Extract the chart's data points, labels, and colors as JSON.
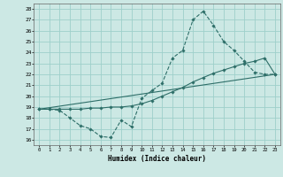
{
  "xlabel": "Humidex (Indice chaleur)",
  "bg_color": "#cce8e4",
  "grid_color": "#9ecfca",
  "line_color": "#2d6e68",
  "xlim": [
    -0.5,
    23.5
  ],
  "ylim": [
    15.5,
    28.5
  ],
  "yticks": [
    16,
    17,
    18,
    19,
    20,
    21,
    22,
    23,
    24,
    25,
    26,
    27,
    28
  ],
  "xticks": [
    0,
    1,
    2,
    3,
    4,
    5,
    6,
    7,
    8,
    9,
    10,
    11,
    12,
    13,
    14,
    15,
    16,
    17,
    18,
    19,
    20,
    21,
    22,
    23
  ],
  "line1_x": [
    0,
    1,
    2,
    3,
    4,
    5,
    6,
    7,
    8,
    9,
    10,
    11,
    12,
    13,
    14,
    15,
    16,
    17,
    18,
    19,
    20,
    21,
    22,
    23
  ],
  "line1_y": [
    18.8,
    18.8,
    18.7,
    18.0,
    17.3,
    17.0,
    16.3,
    16.2,
    17.8,
    17.2,
    19.8,
    20.5,
    21.2,
    23.5,
    24.2,
    27.0,
    27.8,
    26.5,
    25.0,
    24.2,
    23.2,
    22.2,
    22.0,
    22.0
  ],
  "line2_x": [
    0,
    1,
    2,
    3,
    4,
    5,
    6,
    7,
    8,
    9,
    10,
    11,
    12,
    13,
    14,
    15,
    16,
    17,
    18,
    19,
    20,
    21,
    22,
    23
  ],
  "line2_y": [
    18.8,
    18.8,
    18.8,
    18.8,
    18.8,
    18.9,
    18.9,
    19.0,
    19.0,
    19.1,
    19.3,
    19.6,
    20.0,
    20.4,
    20.8,
    21.3,
    21.7,
    22.1,
    22.4,
    22.7,
    23.0,
    23.2,
    23.5,
    22.0
  ],
  "line3_x": [
    0,
    23
  ],
  "line3_y": [
    18.8,
    22.0
  ]
}
